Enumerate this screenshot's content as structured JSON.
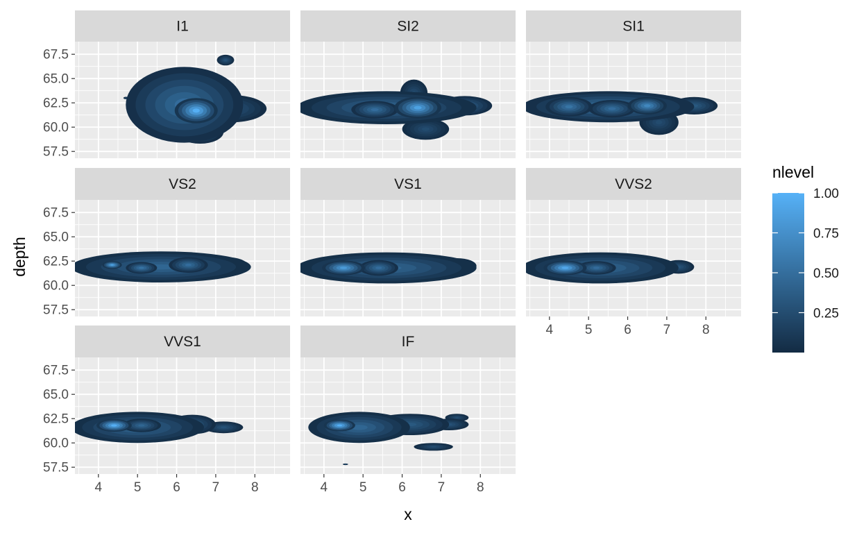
{
  "chart_data": {
    "type": "density2d_filled_faceted",
    "x_label": "x",
    "y_label": "depth",
    "x_ticks": [
      4,
      5,
      6,
      7,
      8
    ],
    "y_ticks": [
      "57.5",
      "60.0",
      "62.5",
      "65.0",
      "67.5"
    ],
    "x_range": [
      3.4,
      8.9
    ],
    "y_range": [
      56.8,
      68.8
    ],
    "legend": {
      "title": "nlevel",
      "position": "right",
      "breaks": [
        "0.25",
        "0.50",
        "0.75",
        "1.00"
      ],
      "color_low": "#132B43",
      "color_high": "#56B1F7"
    },
    "colors": {
      "panel_bg": "#EBEBEB",
      "strip_bg": "#D9D9D9",
      "grid": "#FFFFFF",
      "low": "#132B43",
      "high": "#56B1F7"
    },
    "facets": [
      {
        "label": "I1",
        "peak": [
          6.5,
          61.7
        ],
        "blobs": [
          {
            "cx": 6.2,
            "cy": 62.3,
            "rx": 1.5,
            "ry": 3.9,
            "w": 0.5
          },
          {
            "cx": 7.4,
            "cy": 61.9,
            "rx": 0.9,
            "ry": 1.4,
            "w": 0.3
          },
          {
            "cx": 6.5,
            "cy": 61.7,
            "rx": 0.55,
            "ry": 1.3,
            "w": 1.0
          },
          {
            "cx": 5.6,
            "cy": 63.6,
            "rx": 0.4,
            "ry": 1.4,
            "w": 0.3
          },
          {
            "cx": 6.6,
            "cy": 59.5,
            "rx": 0.6,
            "ry": 1.2,
            "w": 0.3
          },
          {
            "cx": 7.25,
            "cy": 66.9,
            "rx": 0.22,
            "ry": 0.55,
            "w": 0.3
          },
          {
            "cx": 4.7,
            "cy": 63.0,
            "rx": 0.06,
            "ry": 0.12,
            "w": 0.2
          }
        ]
      },
      {
        "label": "SI2",
        "peak": [
          6.4,
          62.0
        ],
        "blobs": [
          {
            "cx": 5.6,
            "cy": 62.0,
            "rx": 2.3,
            "ry": 1.7,
            "w": 0.45
          },
          {
            "cx": 6.4,
            "cy": 62.0,
            "rx": 0.6,
            "ry": 1.1,
            "w": 0.9
          },
          {
            "cx": 5.3,
            "cy": 61.8,
            "rx": 0.6,
            "ry": 0.9,
            "w": 0.5
          },
          {
            "cx": 6.3,
            "cy": 63.5,
            "rx": 0.35,
            "ry": 1.4,
            "w": 0.25
          },
          {
            "cx": 6.6,
            "cy": 59.8,
            "rx": 0.6,
            "ry": 1.1,
            "w": 0.25
          },
          {
            "cx": 7.6,
            "cy": 62.2,
            "rx": 0.7,
            "ry": 1.0,
            "w": 0.4
          },
          {
            "cx": 4.5,
            "cy": 62.1,
            "rx": 0.5,
            "ry": 0.9,
            "w": 0.4
          }
        ]
      },
      {
        "label": "SI1",
        "peak": [
          6.5,
          62.2
        ],
        "blobs": [
          {
            "cx": 5.5,
            "cy": 62.1,
            "rx": 2.2,
            "ry": 1.6,
            "w": 0.5
          },
          {
            "cx": 4.5,
            "cy": 62.1,
            "rx": 0.6,
            "ry": 1.0,
            "w": 0.55
          },
          {
            "cx": 6.5,
            "cy": 62.2,
            "rx": 0.5,
            "ry": 0.9,
            "w": 0.7
          },
          {
            "cx": 5.6,
            "cy": 61.9,
            "rx": 0.6,
            "ry": 0.9,
            "w": 0.5
          },
          {
            "cx": 6.8,
            "cy": 60.5,
            "rx": 0.5,
            "ry": 1.3,
            "w": 0.25
          },
          {
            "cx": 7.7,
            "cy": 62.2,
            "rx": 0.6,
            "ry": 0.9,
            "w": 0.35
          }
        ]
      },
      {
        "label": "VS2",
        "peak": [
          4.3,
          62.1
        ],
        "blobs": [
          {
            "cx": 5.6,
            "cy": 61.9,
            "rx": 2.3,
            "ry": 1.6,
            "w": 0.45
          },
          {
            "cx": 4.35,
            "cy": 62.1,
            "rx": 0.25,
            "ry": 0.4,
            "w": 0.9
          },
          {
            "cx": 5.1,
            "cy": 61.8,
            "rx": 0.4,
            "ry": 0.6,
            "w": 0.55
          },
          {
            "cx": 6.3,
            "cy": 62.1,
            "rx": 0.5,
            "ry": 0.8,
            "w": 0.5
          },
          {
            "cx": 7.3,
            "cy": 62.1,
            "rx": 0.5,
            "ry": 0.8,
            "w": 0.35
          }
        ]
      },
      {
        "label": "VS1",
        "peak": [
          4.4,
          61.8
        ],
        "blobs": [
          {
            "cx": 5.6,
            "cy": 61.8,
            "rx": 2.3,
            "ry": 1.6,
            "w": 0.45
          },
          {
            "cx": 4.5,
            "cy": 61.8,
            "rx": 0.55,
            "ry": 0.75,
            "w": 0.85
          },
          {
            "cx": 5.4,
            "cy": 61.8,
            "rx": 0.5,
            "ry": 0.8,
            "w": 0.5
          },
          {
            "cx": 6.5,
            "cy": 61.9,
            "rx": 0.6,
            "ry": 1.0,
            "w": 0.4
          },
          {
            "cx": 7.4,
            "cy": 62.0,
            "rx": 0.5,
            "ry": 0.8,
            "w": 0.35
          }
        ]
      },
      {
        "label": "VVS2",
        "peak": [
          4.4,
          61.8
        ],
        "blobs": [
          {
            "cx": 5.3,
            "cy": 61.8,
            "rx": 2.0,
            "ry": 1.6,
            "w": 0.45
          },
          {
            "cx": 4.4,
            "cy": 61.8,
            "rx": 0.55,
            "ry": 0.75,
            "w": 0.95
          },
          {
            "cx": 5.2,
            "cy": 61.8,
            "rx": 0.5,
            "ry": 0.7,
            "w": 0.5
          },
          {
            "cx": 6.6,
            "cy": 61.7,
            "rx": 0.6,
            "ry": 1.0,
            "w": 0.4
          },
          {
            "cx": 7.3,
            "cy": 61.9,
            "rx": 0.4,
            "ry": 0.7,
            "w": 0.3
          }
        ]
      },
      {
        "label": "VVS1",
        "peak": [
          4.4,
          61.8
        ],
        "blobs": [
          {
            "cx": 5.0,
            "cy": 61.6,
            "rx": 1.7,
            "ry": 1.6,
            "w": 0.45
          },
          {
            "cx": 4.4,
            "cy": 61.8,
            "rx": 0.45,
            "ry": 0.65,
            "w": 1.0
          },
          {
            "cx": 5.1,
            "cy": 61.8,
            "rx": 0.5,
            "ry": 0.7,
            "w": 0.45
          },
          {
            "cx": 6.4,
            "cy": 61.9,
            "rx": 0.6,
            "ry": 1.0,
            "w": 0.35
          },
          {
            "cx": 7.2,
            "cy": 61.6,
            "rx": 0.5,
            "ry": 0.6,
            "w": 0.3
          }
        ]
      },
      {
        "label": "IF",
        "peak": [
          4.4,
          61.8
        ],
        "blobs": [
          {
            "cx": 4.9,
            "cy": 61.6,
            "rx": 1.3,
            "ry": 1.6,
            "w": 0.45
          },
          {
            "cx": 4.4,
            "cy": 61.8,
            "rx": 0.4,
            "ry": 0.6,
            "w": 1.0
          },
          {
            "cx": 6.2,
            "cy": 61.9,
            "rx": 1.0,
            "ry": 1.1,
            "w": 0.35
          },
          {
            "cx": 7.2,
            "cy": 61.9,
            "rx": 0.5,
            "ry": 0.6,
            "w": 0.3
          },
          {
            "cx": 6.8,
            "cy": 59.6,
            "rx": 0.5,
            "ry": 0.4,
            "w": 0.25
          },
          {
            "cx": 7.4,
            "cy": 62.6,
            "rx": 0.3,
            "ry": 0.4,
            "w": 0.25
          },
          {
            "cx": 4.55,
            "cy": 57.8,
            "rx": 0.07,
            "ry": 0.08,
            "w": 0.2
          }
        ]
      }
    ]
  }
}
